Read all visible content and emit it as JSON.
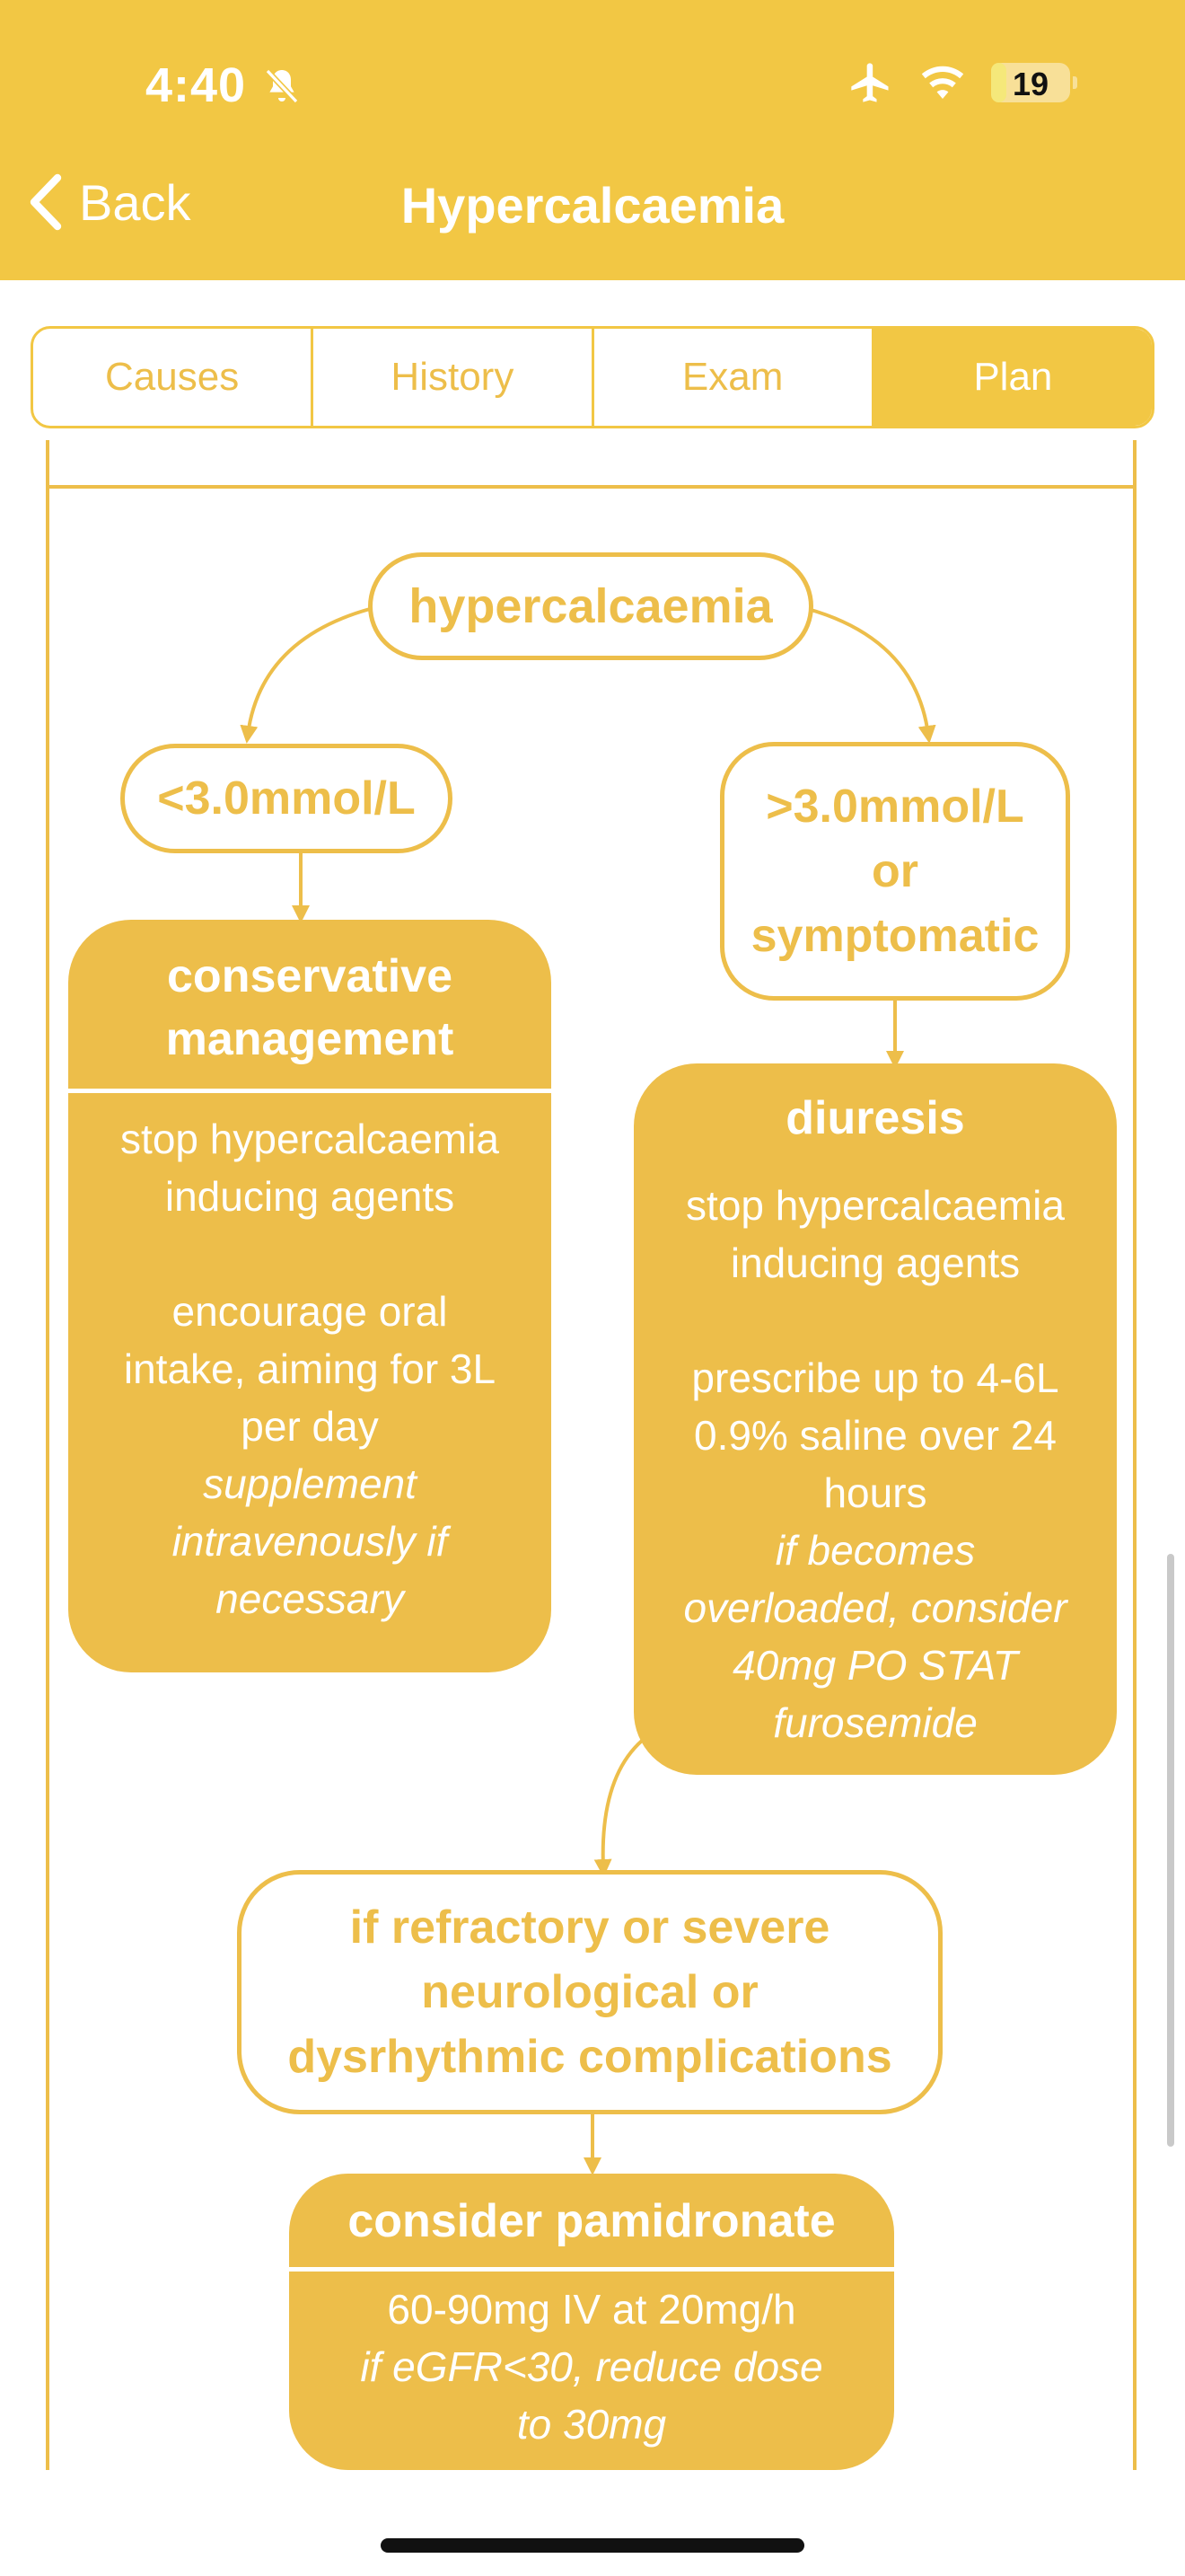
{
  "status": {
    "time": "4:40",
    "battery": "19",
    "battery_level": 0.19
  },
  "nav": {
    "back_label": "Back",
    "title": "Hypercalcaemia"
  },
  "tabs": [
    {
      "label": "Causes"
    },
    {
      "label": "History"
    },
    {
      "label": "Exam"
    },
    {
      "label": "Plan",
      "active": true
    }
  ],
  "colors": {
    "primary": "#F2C744",
    "box": "#EDBE4A",
    "text_on_primary": "#FFFFFF"
  },
  "flowchart": {
    "root": "hypercalcaemia",
    "branch_low": "<3.0mmol/L",
    "branch_high": {
      "line1": ">3.0mmol/L",
      "line2": "or",
      "line3": "symptomatic"
    },
    "conservative": {
      "title_line1": "conservative",
      "title_line2": "management",
      "body": [
        "stop hypercalcaemia",
        "inducing agents",
        "encourage oral",
        "intake, aiming for 3L",
        "per day"
      ],
      "italic": [
        "supplement",
        "intravenously if",
        "necessary"
      ]
    },
    "diuresis": {
      "title": "diuresis",
      "body": [
        "stop hypercalcaemia",
        "inducing agents",
        "prescribe up to 4-6L",
        "0.9% saline over 24",
        "hours"
      ],
      "italic": [
        "if becomes",
        "overloaded, consider",
        "40mg PO STAT",
        "furosemide"
      ]
    },
    "refractory": {
      "line1": "if refractory or severe",
      "line2": "neurological or",
      "line3": "dysrhythmic complications"
    },
    "pamidronate": {
      "title": "consider pamidronate",
      "body": "60-90mg IV at 20mg/h",
      "italic": [
        "if eGFR<30, reduce dose",
        "to 30mg"
      ]
    }
  }
}
